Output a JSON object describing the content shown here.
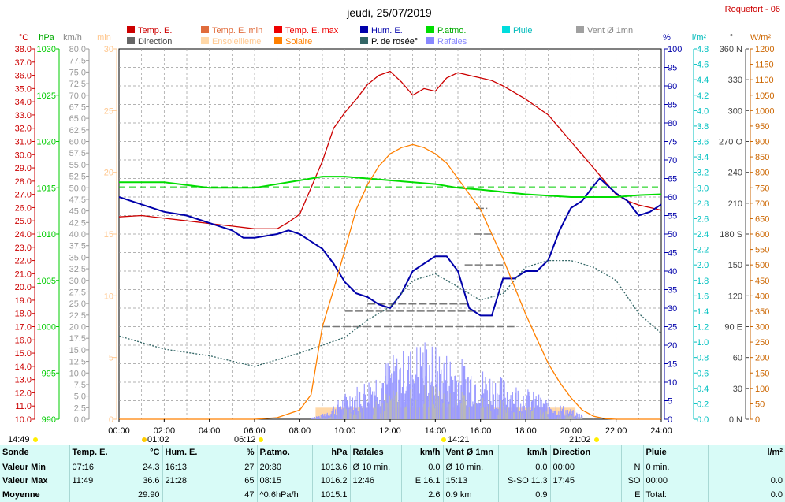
{
  "station": "Roquefort - 06",
  "date_title": "jeudi, 25/07/2019",
  "legend": [
    {
      "label": "Temp. E.",
      "color": "#cc0000",
      "text_color": "#cc0000"
    },
    {
      "label": "Temp. E. min",
      "color": "#e06c3c",
      "text_color": "#e06c3c"
    },
    {
      "label": "Temp. E. max",
      "color": "#ee0000",
      "text_color": "#ee0000"
    },
    {
      "label": "Hum. E.",
      "color": "#0000aa",
      "text_color": "#0000aa"
    },
    {
      "label": "P.atmo.",
      "color": "#00dd00",
      "text_color": "#00aa00"
    },
    {
      "label": "Pluie",
      "color": "#00dddd",
      "text_color": "#00bbbb"
    },
    {
      "label": "Vent Ø 1mn",
      "color": "#a0a0a0",
      "text_color": "#888888"
    },
    {
      "label": "Direction",
      "color": "#666666",
      "text_color": "#444444"
    },
    {
      "label": "Ensoleilleme",
      "color": "#ffd8a8",
      "text_color": "#ffc890"
    },
    {
      "label": "Solaire",
      "color": "#ff8000",
      "text_color": "#ff8000"
    },
    {
      "label": "P. de rosée°",
      "color": "#336666",
      "text_color": "#000000"
    },
    {
      "label": "Rafales",
      "color": "#8888ff",
      "text_color": "#8888ff"
    }
  ],
  "axes": {
    "temp_unit": "°C",
    "press_unit": "hPa",
    "wind_unit": "km/h",
    "min_unit": "min",
    "hum_unit": "%",
    "rain_unit": "l/m²",
    "dir_unit": "°",
    "solar_unit": "W/m²",
    "temp_ticks": [
      "38.0",
      "37.0",
      "36.0",
      "35.0",
      "34.0",
      "33.0",
      "32.0",
      "31.0",
      "30.0",
      "29.0",
      "28.0",
      "27.0",
      "26.0",
      "25.0",
      "24.0",
      "23.0",
      "22.0",
      "21.0",
      "20.0",
      "19.0",
      "18.0",
      "17.0",
      "16.0",
      "15.0",
      "14.0",
      "13.0",
      "12.0",
      "11.0",
      "10.0"
    ],
    "press_ticks": [
      "1030",
      "1025",
      "1020",
      "1015",
      "1010",
      "1005",
      "1000",
      "995",
      "990"
    ],
    "wind_ticks": [
      "80.0",
      "77.5",
      "75.0",
      "72.5",
      "70.0",
      "67.5",
      "65.0",
      "62.5",
      "60.0",
      "57.5",
      "55.0",
      "52.5",
      "50.0",
      "47.5",
      "45.0",
      "42.5",
      "40.0",
      "37.5",
      "35.0",
      "32.5",
      "30.0",
      "27.5",
      "25.0",
      "22.5",
      "20.0",
      "17.5",
      "15.0",
      "12.5",
      "10.0",
      "7.5",
      "5.0",
      "2.5",
      "0.0"
    ],
    "min_ticks": [
      "30",
      "25",
      "20",
      "15",
      "10",
      "5",
      "0"
    ],
    "hum_ticks": [
      "100",
      "95",
      "90",
      "85",
      "80",
      "75",
      "70",
      "65",
      "60",
      "55",
      "50",
      "45",
      "40",
      "35",
      "30",
      "25",
      "20",
      "15",
      "10",
      "5",
      "0"
    ],
    "rain_ticks": [
      "4.8",
      "4.6",
      "4.4",
      "4.2",
      "4.0",
      "3.8",
      "3.6",
      "3.4",
      "3.2",
      "3.0",
      "2.8",
      "2.6",
      "2.4",
      "2.2",
      "2.0",
      "1.8",
      "1.6",
      "1.4",
      "1.2",
      "1.0",
      "0.8",
      "0.6",
      "0.4",
      "0.2",
      "0.0"
    ],
    "dir_ticks": [
      "360 N",
      "330",
      "300",
      "270 O",
      "240",
      "210",
      "180 S",
      "150",
      "120",
      "90 E",
      "60",
      "30",
      "0 N"
    ],
    "solar_ticks": [
      "1200",
      "1150",
      "1100",
      "1050",
      "1000",
      "950",
      "900",
      "850",
      "800",
      "750",
      "700",
      "650",
      "600",
      "550",
      "500",
      "450",
      "400",
      "350",
      "300",
      "250",
      "200",
      "150",
      "100",
      "50",
      "0"
    ],
    "time_ticks": [
      "00:00",
      "02:00",
      "04:00",
      "06:00",
      "08:00",
      "10:00",
      "12:00",
      "14:00",
      "16:00",
      "18:00",
      "20:00",
      "22:00",
      "24:00"
    ]
  },
  "sun_markers": {
    "day_length": "14:49",
    "sunrise": "06:12",
    "solar_noon": "14:21",
    "sunset": "21:02",
    "moonrise": "01:02"
  },
  "chart_data": {
    "type": "line",
    "x_label": "",
    "x_range_hours": [
      0,
      24
    ],
    "series": [
      {
        "name": "Temp. E.",
        "axis": "°C",
        "color": "#cc0000",
        "x": [
          0,
          1,
          2,
          3,
          4,
          5,
          6,
          7,
          7.5,
          8,
          8.5,
          9,
          9.5,
          10,
          10.5,
          11,
          11.5,
          12,
          12.5,
          13,
          13.5,
          14,
          14.5,
          15,
          15.5,
          16,
          16.5,
          17,
          17.5,
          18,
          18.5,
          19,
          19.5,
          20,
          20.5,
          21,
          21.5,
          22,
          22.5,
          23,
          23.5,
          24
        ],
        "y": [
          25.3,
          25.4,
          25.2,
          25.0,
          24.8,
          24.6,
          24.4,
          24.4,
          24.9,
          25.5,
          27.5,
          29.5,
          32.0,
          33.2,
          34.2,
          35.3,
          36.0,
          36.3,
          35.5,
          34.5,
          35.0,
          34.8,
          35.8,
          36.2,
          36.0,
          35.8,
          35.6,
          35.2,
          34.7,
          34.2,
          33.6,
          33.0,
          32.0,
          31.0,
          30.0,
          29.0,
          28.0,
          27.0,
          26.5,
          26.2,
          26.0,
          25.8
        ]
      },
      {
        "name": "Hum. E.",
        "axis": "%",
        "color": "#0000aa",
        "x": [
          0,
          1,
          2,
          3,
          4,
          5,
          5.5,
          6,
          7,
          7.5,
          8,
          8.5,
          9,
          9.5,
          10,
          10.5,
          11,
          11.5,
          12,
          12.5,
          13,
          13.5,
          14,
          14.5,
          15,
          15.5,
          16,
          16.5,
          17,
          17.5,
          18,
          18.5,
          19,
          19.5,
          20,
          20.5,
          21,
          21.28,
          22,
          22.5,
          23,
          23.5,
          24
        ],
        "y": [
          60,
          58,
          56,
          55,
          53,
          51,
          49,
          49,
          50,
          51,
          50,
          48,
          46,
          42,
          37,
          34,
          33,
          31,
          30,
          34,
          40,
          42,
          44,
          44,
          40,
          30,
          28,
          28,
          38,
          38,
          40,
          40,
          43,
          51,
          57,
          59,
          63,
          65,
          61,
          59,
          55,
          56,
          58
        ]
      },
      {
        "name": "P.atmo.",
        "axis": "hPa",
        "color": "#00dd00",
        "x": [
          0,
          2,
          4,
          6,
          8,
          9,
          10,
          12,
          14,
          15,
          16,
          18,
          20,
          22,
          23,
          24
        ],
        "y": [
          1015.6,
          1015.6,
          1015.0,
          1015.0,
          1015.8,
          1016.2,
          1016.2,
          1015.8,
          1015.4,
          1015.0,
          1014.8,
          1014.3,
          1014.0,
          1014.0,
          1014.2,
          1014.3
        ]
      },
      {
        "name": "P. de rosée°",
        "axis": "°C",
        "color": "#336666",
        "x": [
          0,
          2,
          4,
          6,
          8,
          10,
          11,
          12,
          13,
          14,
          15,
          16,
          17,
          18,
          19,
          20,
          21,
          22,
          23,
          24
        ],
        "y": [
          16.3,
          15.3,
          14.8,
          14.0,
          15.0,
          16.2,
          17.5,
          18.5,
          20.5,
          21.0,
          20.0,
          19.0,
          19.5,
          21.5,
          22.0,
          22.0,
          21.5,
          20.5,
          18.0,
          16.5
        ]
      },
      {
        "name": "Solaire",
        "axis": "W/m²",
        "color": "#ff8000",
        "x": [
          0,
          6,
          7,
          8,
          8.5,
          9,
          9.5,
          10,
          10.5,
          11,
          11.5,
          12,
          12.5,
          13,
          13.5,
          14,
          14.5,
          15,
          15.5,
          16,
          16.5,
          17,
          17.5,
          18,
          18.5,
          19,
          19.5,
          20,
          20.5,
          21,
          21.5,
          22,
          24
        ],
        "y": [
          0,
          0,
          5,
          30,
          80,
          300,
          420,
          550,
          680,
          760,
          820,
          860,
          880,
          890,
          880,
          860,
          830,
          780,
          730,
          680,
          600,
          520,
          430,
          340,
          260,
          180,
          120,
          70,
          30,
          10,
          2,
          0,
          0
        ]
      },
      {
        "name": "Rafales",
        "axis": "km/h",
        "color": "#8888ff",
        "x": [
          0,
          6,
          8,
          9,
          10,
          11,
          12,
          13,
          13.5,
          14,
          15,
          16,
          17,
          18,
          19,
          20,
          21,
          22,
          24
        ],
        "y": [
          0,
          0,
          0,
          1,
          5,
          8,
          12,
          14,
          16,
          14,
          12,
          10,
          8,
          6,
          4,
          2,
          0,
          0,
          0
        ]
      }
    ],
    "direction_dash_levels_deg": [
      {
        "from": 9.0,
        "to": 17.5,
        "deg": 90
      },
      {
        "from": 10.0,
        "to": 16.0,
        "deg": 105
      },
      {
        "from": 11.0,
        "to": 15.5,
        "deg": 112
      },
      {
        "from": 15.3,
        "to": 17.0,
        "deg": 150
      },
      {
        "from": 15.7,
        "to": 16.5,
        "deg": 180
      },
      {
        "from": 15.8,
        "to": 16.3,
        "deg": 205
      }
    ],
    "pressure_mean_hpa": 1015.1,
    "sunshine_window_hours": [
      8.7,
      20.2
    ]
  },
  "stats": {
    "headers": [
      "Sonde",
      "Temp. E.",
      "°C",
      "Hum. E.",
      "%",
      "P.atmo.",
      "hPa",
      "Rafales",
      "km/h",
      "Vent Ø 1mn",
      "km/h",
      "Direction",
      "",
      "Pluie",
      "l/m²"
    ],
    "rows": [
      {
        "label": "Valeur Min",
        "cells": [
          "07:16",
          "24.3",
          "16:13",
          "27",
          "20:30",
          "1013.6",
          "Ø 10 min.",
          "0.0",
          "Ø 10 min.",
          "0.0",
          "00:00",
          "N",
          "0 min.",
          ""
        ]
      },
      {
        "label": "Valeur Max",
        "cells": [
          "11:49",
          "36.6",
          "21:28",
          "65",
          "08:15",
          "1016.2",
          "12:46",
          "E 16.1",
          "15:13",
          "S-SO 11.3",
          "17:45",
          "SO",
          "00:00",
          "0.0"
        ]
      },
      {
        "label": "Moyenne",
        "cells": [
          "",
          "29.90",
          "",
          "47",
          "^0.6hPa/h",
          "1015.1",
          "",
          "2.6",
          "0.9 km",
          "0.9",
          "",
          "E",
          "Total:",
          "0.0"
        ]
      }
    ]
  }
}
